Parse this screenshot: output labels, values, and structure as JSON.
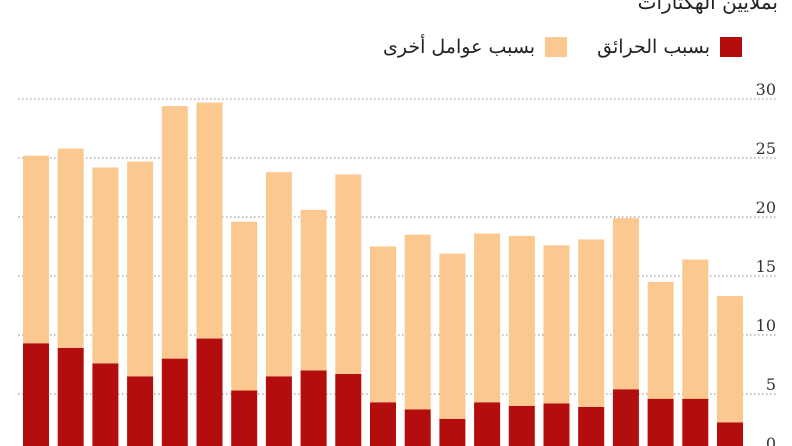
{
  "chart_data": {
    "type": "bar",
    "stacked": true,
    "ylabel": "بملايين الهكتارات",
    "ylim": [
      0,
      30
    ],
    "yticks": [
      0,
      5,
      10,
      15,
      20,
      25,
      30
    ],
    "grid": true,
    "legend_position": "top-right",
    "series": [
      {
        "name": "بسبب الحرائق",
        "color": "#b30d0d",
        "values": [
          9.3,
          8.9,
          7.6,
          6.5,
          8.0,
          9.7,
          5.3,
          6.5,
          7.0,
          6.7,
          4.3,
          3.7,
          2.9,
          4.3,
          4.0,
          4.2,
          3.9,
          5.4,
          4.6,
          4.6,
          2.6
        ]
      },
      {
        "name": "بسبب عوامل أخرى",
        "color": "#fbc990",
        "values": [
          15.9,
          16.9,
          16.6,
          18.2,
          21.4,
          20.0,
          14.3,
          17.3,
          13.6,
          16.9,
          13.2,
          14.8,
          14.0,
          14.3,
          14.4,
          13.4,
          14.2,
          14.5,
          9.9,
          11.8,
          10.7
        ]
      }
    ]
  }
}
